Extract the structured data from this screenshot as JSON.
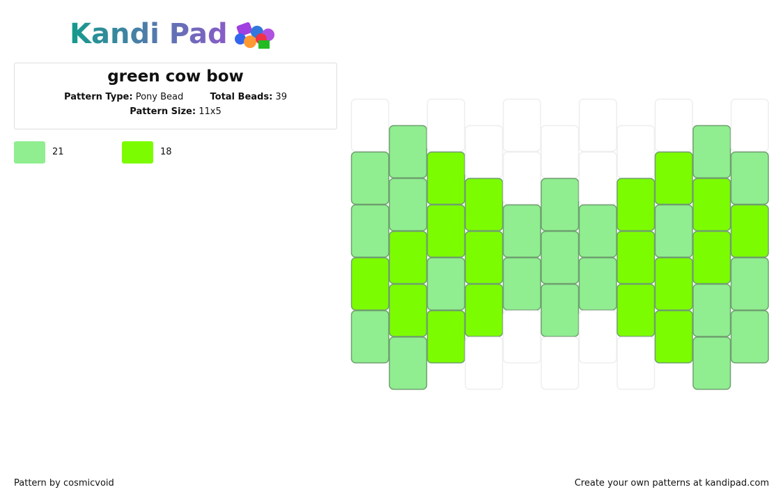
{
  "header": {
    "logo": "Kandi Pad",
    "title": "green cow bow",
    "pattern_type_label": "Pattern Type:",
    "pattern_type": "Pony Bead",
    "total_beads_label": "Total Beads:",
    "total_beads": 39,
    "pattern_size_label": "Pattern Size:",
    "pattern_size": "11x5"
  },
  "legend": [
    {
      "color": "#90ee90",
      "count": 21
    },
    {
      "color": "#7cfc00",
      "count": 18
    }
  ],
  "grid": {
    "empty_color": "#ffffff",
    "columns": [
      [
        0,
        1,
        1,
        2,
        1
      ],
      [
        1,
        1,
        2,
        2,
        1
      ],
      [
        0,
        2,
        2,
        1,
        2
      ],
      [
        0,
        2,
        2,
        2,
        0
      ],
      [
        0,
        0,
        1,
        1,
        0
      ],
      [
        0,
        1,
        1,
        1,
        0
      ],
      [
        0,
        0,
        1,
        1,
        0
      ],
      [
        0,
        2,
        2,
        2,
        0
      ],
      [
        0,
        2,
        1,
        2,
        2
      ],
      [
        1,
        2,
        2,
        1,
        1
      ],
      [
        0,
        1,
        2,
        1,
        1
      ]
    ]
  },
  "footer": {
    "credit": "Pattern by cosmicvoid",
    "link": "Create your own patterns at kandipad.com"
  }
}
